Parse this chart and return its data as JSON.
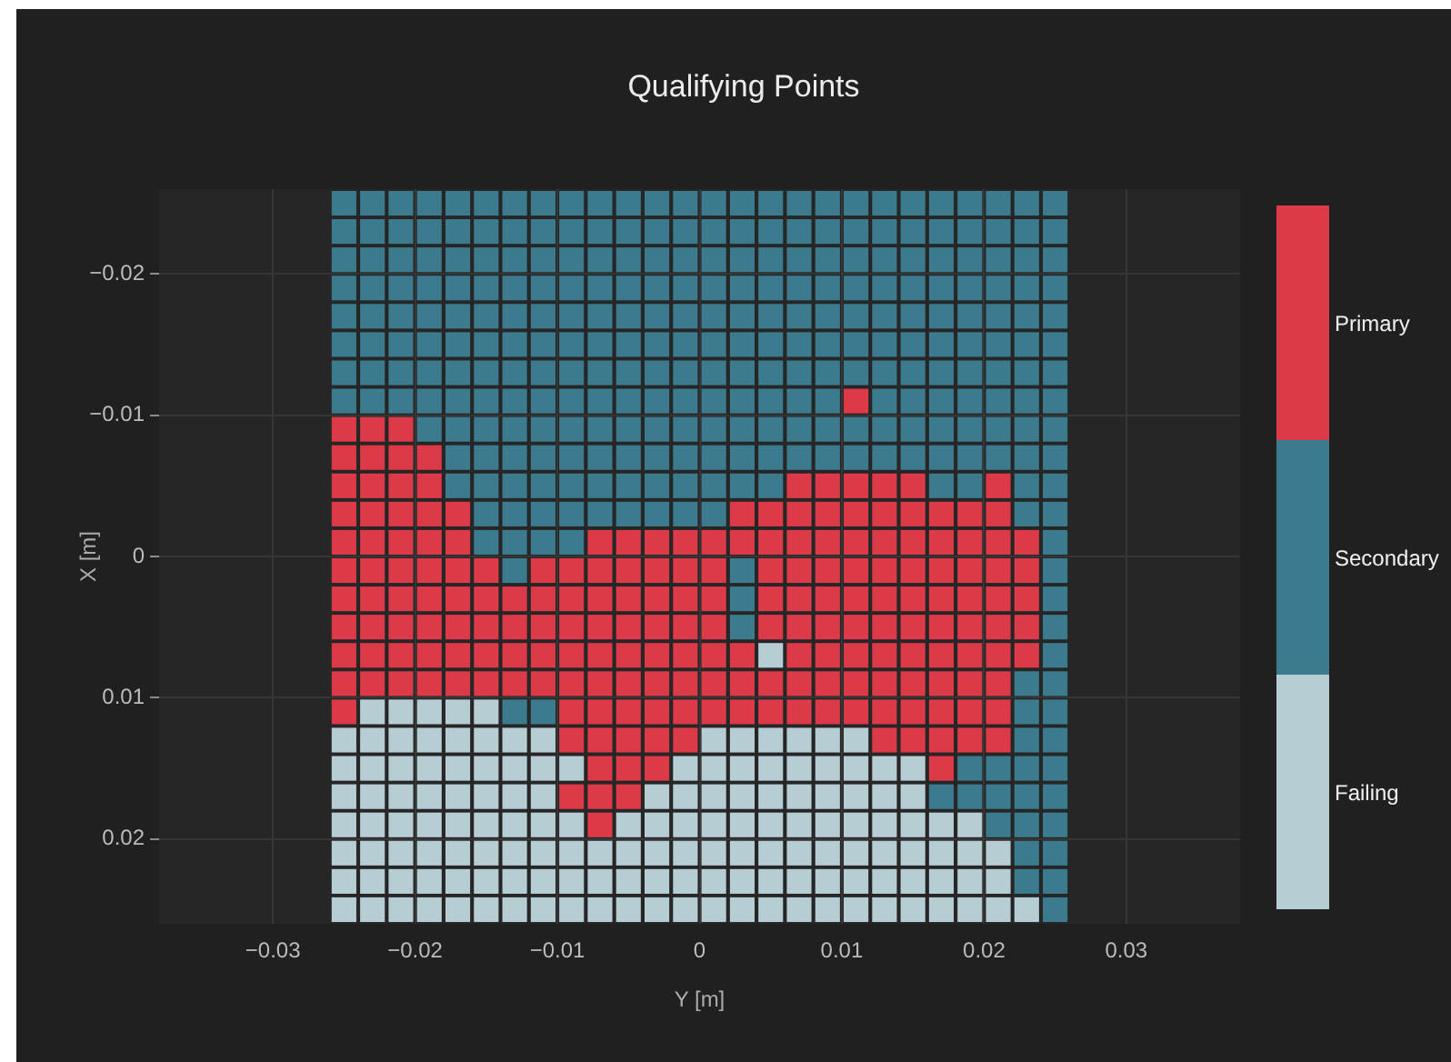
{
  "chart_data": {
    "type": "scatter",
    "title": "Qualifying Points",
    "xlabel": "Y [m]",
    "ylabel": "X [m]",
    "xlim": [
      -0.038,
      0.038
    ],
    "ylim": [
      0.026,
      -0.026
    ],
    "xticks": [
      {
        "value": -0.03,
        "label": "−0.03"
      },
      {
        "value": -0.02,
        "label": "−0.02"
      },
      {
        "value": -0.01,
        "label": "−0.01"
      },
      0,
      0.01,
      0.02,
      0.03
    ],
    "yticks": [
      {
        "value": -0.02,
        "label": "−0.02"
      },
      {
        "value": -0.01,
        "label": "−0.01"
      },
      0,
      0.01,
      0.02
    ],
    "grid": true,
    "legend": "right",
    "marker": "square",
    "series": [
      {
        "name": "Primary",
        "color": "#dc3a48",
        "x": [
          0.011,
          -0.025,
          -0.023,
          -0.021,
          -0.025,
          -0.023,
          -0.021,
          -0.019,
          -0.025,
          -0.023,
          -0.021,
          -0.019,
          0.007,
          0.009,
          0.011,
          0.013,
          0.015,
          0.021,
          -0.025,
          -0.023,
          -0.021,
          -0.019,
          -0.017,
          0.003,
          0.005,
          0.007,
          0.009,
          0.011,
          0.013,
          0.015,
          0.017,
          0.019,
          0.021,
          -0.025,
          -0.023,
          -0.021,
          -0.019,
          -0.017,
          -0.007,
          -0.005,
          -0.003,
          -0.001,
          0.001,
          0.003,
          0.005,
          0.007,
          0.009,
          0.011,
          0.013,
          0.015,
          0.017,
          0.019,
          0.021,
          0.023,
          -0.025,
          -0.023,
          -0.021,
          -0.019,
          -0.017,
          -0.015,
          -0.011,
          -0.009,
          -0.007,
          -0.005,
          -0.003,
          -0.001,
          0.001,
          0.005,
          0.007,
          0.009,
          0.011,
          0.013,
          0.015,
          0.017,
          0.019,
          0.021,
          0.023,
          -0.025,
          -0.023,
          -0.021,
          -0.019,
          -0.017,
          -0.015,
          -0.013,
          -0.011,
          -0.009,
          -0.007,
          -0.005,
          -0.003,
          -0.001,
          0.001,
          0.005,
          0.007,
          0.009,
          0.011,
          0.013,
          0.015,
          0.017,
          0.019,
          0.021,
          0.023,
          -0.025,
          -0.023,
          -0.021,
          -0.019,
          -0.017,
          -0.015,
          -0.013,
          -0.011,
          -0.009,
          -0.007,
          -0.005,
          -0.003,
          -0.001,
          0.001,
          0.005,
          0.007,
          0.009,
          0.011,
          0.013,
          0.015,
          0.017,
          0.019,
          0.021,
          0.023,
          -0.025,
          -0.023,
          -0.021,
          -0.019,
          -0.017,
          -0.015,
          -0.013,
          -0.011,
          -0.009,
          -0.007,
          -0.005,
          -0.003,
          -0.001,
          0.001,
          0.003,
          0.007,
          0.009,
          0.011,
          0.013,
          0.015,
          0.017,
          0.019,
          0.021,
          0.023,
          -0.025,
          -0.023,
          -0.021,
          -0.019,
          -0.017,
          -0.015,
          -0.013,
          -0.011,
          -0.009,
          -0.007,
          -0.005,
          -0.003,
          -0.001,
          0.001,
          0.003,
          0.005,
          0.007,
          0.009,
          0.011,
          0.013,
          0.015,
          0.017,
          0.019,
          0.021,
          -0.025,
          -0.009,
          -0.007,
          -0.005,
          -0.003,
          -0.001,
          0.001,
          0.003,
          0.005,
          0.007,
          0.009,
          0.011,
          0.013,
          0.015,
          0.017,
          0.019,
          0.021,
          -0.009,
          -0.007,
          -0.005,
          -0.003,
          -0.001,
          0.013,
          0.015,
          0.017,
          0.019,
          0.021,
          -0.007,
          -0.005,
          -0.003,
          0.017,
          -0.009,
          -0.007,
          -0.005,
          -0.007
        ],
        "values": [
          -0.011,
          -0.009,
          -0.009,
          -0.009,
          -0.007,
          -0.007,
          -0.007,
          -0.007,
          -0.005,
          -0.005,
          -0.005,
          -0.005,
          -0.005,
          -0.005,
          -0.005,
          -0.005,
          -0.005,
          -0.005,
          -0.003,
          -0.003,
          -0.003,
          -0.003,
          -0.003,
          -0.003,
          -0.003,
          -0.003,
          -0.003,
          -0.003,
          -0.003,
          -0.003,
          -0.003,
          -0.003,
          -0.003,
          -0.001,
          -0.001,
          -0.001,
          -0.001,
          -0.001,
          -0.001,
          -0.001,
          -0.001,
          -0.001,
          -0.001,
          -0.001,
          -0.001,
          -0.001,
          -0.001,
          -0.001,
          -0.001,
          -0.001,
          -0.001,
          -0.001,
          -0.001,
          -0.001,
          0.001,
          0.001,
          0.001,
          0.001,
          0.001,
          0.001,
          0.001,
          0.001,
          0.001,
          0.001,
          0.001,
          0.001,
          0.001,
          0.001,
          0.001,
          0.001,
          0.001,
          0.001,
          0.001,
          0.001,
          0.001,
          0.001,
          0.001,
          0.003,
          0.003,
          0.003,
          0.003,
          0.003,
          0.003,
          0.003,
          0.003,
          0.003,
          0.003,
          0.003,
          0.003,
          0.003,
          0.003,
          0.003,
          0.003,
          0.003,
          0.003,
          0.003,
          0.003,
          0.003,
          0.003,
          0.003,
          0.003,
          0.005,
          0.005,
          0.005,
          0.005,
          0.005,
          0.005,
          0.005,
          0.005,
          0.005,
          0.005,
          0.005,
          0.005,
          0.005,
          0.005,
          0.005,
          0.005,
          0.005,
          0.005,
          0.005,
          0.005,
          0.005,
          0.005,
          0.005,
          0.005,
          0.007,
          0.007,
          0.007,
          0.007,
          0.007,
          0.007,
          0.007,
          0.007,
          0.007,
          0.007,
          0.007,
          0.007,
          0.007,
          0.007,
          0.007,
          0.007,
          0.007,
          0.007,
          0.007,
          0.007,
          0.007,
          0.007,
          0.007,
          0.007,
          0.009,
          0.009,
          0.009,
          0.009,
          0.009,
          0.009,
          0.009,
          0.009,
          0.009,
          0.009,
          0.009,
          0.009,
          0.009,
          0.009,
          0.009,
          0.009,
          0.009,
          0.009,
          0.009,
          0.009,
          0.009,
          0.009,
          0.009,
          0.009,
          0.011,
          0.011,
          0.011,
          0.011,
          0.011,
          0.011,
          0.011,
          0.011,
          0.011,
          0.011,
          0.011,
          0.011,
          0.011,
          0.011,
          0.011,
          0.011,
          0.011,
          0.013,
          0.013,
          0.013,
          0.013,
          0.013,
          0.013,
          0.013,
          0.013,
          0.013,
          0.013,
          0.015,
          0.015,
          0.015,
          0.015,
          0.017,
          0.017,
          0.017,
          0.019
        ]
      },
      {
        "name": "Secondary",
        "color": "#3b7b8d",
        "x": [
          -0.025,
          -0.023,
          -0.021,
          -0.019,
          -0.017,
          -0.015,
          -0.013,
          -0.011,
          -0.009,
          -0.007,
          -0.005,
          -0.003,
          -0.001,
          0.001,
          0.003,
          0.005,
          0.007,
          0.009,
          0.011,
          0.013,
          0.015,
          0.017,
          0.019,
          0.021,
          0.023,
          0.025,
          -0.025,
          -0.023,
          -0.021,
          -0.019,
          -0.017,
          -0.015,
          -0.013,
          -0.011,
          -0.009,
          -0.007,
          -0.005,
          -0.003,
          -0.001,
          0.001,
          0.003,
          0.005,
          0.007,
          0.009,
          0.011,
          0.013,
          0.015,
          0.017,
          0.019,
          0.021,
          0.023,
          0.025,
          -0.025,
          -0.023,
          -0.021,
          -0.019,
          -0.017,
          -0.015,
          -0.013,
          -0.011,
          -0.009,
          -0.007,
          -0.005,
          -0.003,
          -0.001,
          0.001,
          0.003,
          0.005,
          0.007,
          0.009,
          0.011,
          0.013,
          0.015,
          0.017,
          0.019,
          0.021,
          0.023,
          0.025,
          -0.025,
          -0.023,
          -0.021,
          -0.019,
          -0.017,
          -0.015,
          -0.013,
          -0.011,
          -0.009,
          -0.007,
          -0.005,
          -0.003,
          -0.001,
          0.001,
          0.003,
          0.005,
          0.007,
          0.009,
          0.011,
          0.013,
          0.015,
          0.017,
          0.019,
          0.021,
          0.023,
          0.025,
          -0.025,
          -0.023,
          -0.021,
          -0.019,
          -0.017,
          -0.015,
          -0.013,
          -0.011,
          -0.009,
          -0.007,
          -0.005,
          -0.003,
          -0.001,
          0.001,
          0.003,
          0.005,
          0.007,
          0.009,
          0.011,
          0.013,
          0.015,
          0.017,
          0.019,
          0.021,
          0.023,
          0.025,
          -0.025,
          -0.023,
          -0.021,
          -0.019,
          -0.017,
          -0.015,
          -0.013,
          -0.011,
          -0.009,
          -0.007,
          -0.005,
          -0.003,
          -0.001,
          0.001,
          0.003,
          0.005,
          0.007,
          0.009,
          0.011,
          0.013,
          0.015,
          0.017,
          0.019,
          0.021,
          0.023,
          0.025,
          -0.025,
          -0.023,
          -0.021,
          -0.019,
          -0.017,
          -0.015,
          -0.013,
          -0.011,
          -0.009,
          -0.007,
          -0.005,
          -0.003,
          -0.001,
          0.001,
          0.003,
          0.005,
          0.007,
          0.009,
          0.011,
          0.013,
          0.015,
          0.017,
          0.019,
          0.021,
          0.023,
          0.025,
          -0.025,
          -0.023,
          -0.021,
          -0.019,
          -0.017,
          -0.015,
          -0.013,
          -0.011,
          -0.009,
          -0.007,
          -0.005,
          -0.003,
          -0.001,
          0.001,
          0.003,
          0.005,
          0.007,
          0.009,
          0.013,
          0.015,
          0.017,
          0.019,
          0.021,
          0.023,
          0.025,
          -0.019,
          -0.017,
          -0.015,
          -0.013,
          -0.011,
          -0.009,
          -0.007,
          -0.005,
          -0.003,
          -0.001,
          0.001,
          0.003,
          0.005,
          0.007,
          0.009,
          0.011,
          0.013,
          0.015,
          0.017,
          0.019,
          0.021,
          0.023,
          0.025,
          -0.017,
          -0.015,
          -0.013,
          -0.011,
          -0.009,
          -0.007,
          -0.005,
          -0.003,
          -0.001,
          0.001,
          0.003,
          0.005,
          0.007,
          0.009,
          0.011,
          0.013,
          0.015,
          0.017,
          0.019,
          0.021,
          0.023,
          0.025,
          -0.017,
          -0.015,
          -0.013,
          -0.011,
          -0.009,
          -0.007,
          -0.005,
          -0.003,
          -0.001,
          0.001,
          0.003,
          0.005,
          0.017,
          0.019,
          0.023,
          0.025,
          -0.015,
          -0.013,
          -0.011,
          -0.009,
          -0.007,
          -0.005,
          -0.003,
          -0.001,
          0.001,
          0.023,
          0.025,
          -0.015,
          -0.013,
          -0.011,
          -0.009,
          0.025,
          -0.013,
          0.003,
          0.025,
          0.003,
          0.025,
          0.003,
          0.025,
          0.025,
          0.023,
          0.025,
          -0.013,
          -0.011,
          0.023,
          0.025,
          0.023,
          0.025,
          0.019,
          0.021,
          0.023,
          0.025,
          0.017,
          0.019,
          0.021,
          0.023,
          0.025,
          0.021,
          0.023,
          0.025,
          0.023,
          0.025,
          0.023,
          0.025,
          0.025
        ],
        "values": [
          -0.025,
          -0.025,
          -0.025,
          -0.025,
          -0.025,
          -0.025,
          -0.025,
          -0.025,
          -0.025,
          -0.025,
          -0.025,
          -0.025,
          -0.025,
          -0.025,
          -0.025,
          -0.025,
          -0.025,
          -0.025,
          -0.025,
          -0.025,
          -0.025,
          -0.025,
          -0.025,
          -0.025,
          -0.025,
          -0.025,
          -0.023,
          -0.023,
          -0.023,
          -0.023,
          -0.023,
          -0.023,
          -0.023,
          -0.023,
          -0.023,
          -0.023,
          -0.023,
          -0.023,
          -0.023,
          -0.023,
          -0.023,
          -0.023,
          -0.023,
          -0.023,
          -0.023,
          -0.023,
          -0.023,
          -0.023,
          -0.023,
          -0.023,
          -0.023,
          -0.023,
          -0.021,
          -0.021,
          -0.021,
          -0.021,
          -0.021,
          -0.021,
          -0.021,
          -0.021,
          -0.021,
          -0.021,
          -0.021,
          -0.021,
          -0.021,
          -0.021,
          -0.021,
          -0.021,
          -0.021,
          -0.021,
          -0.021,
          -0.021,
          -0.021,
          -0.021,
          -0.021,
          -0.021,
          -0.021,
          -0.021,
          -0.019,
          -0.019,
          -0.019,
          -0.019,
          -0.019,
          -0.019,
          -0.019,
          -0.019,
          -0.019,
          -0.019,
          -0.019,
          -0.019,
          -0.019,
          -0.019,
          -0.019,
          -0.019,
          -0.019,
          -0.019,
          -0.019,
          -0.019,
          -0.019,
          -0.019,
          -0.019,
          -0.019,
          -0.019,
          -0.019,
          -0.017,
          -0.017,
          -0.017,
          -0.017,
          -0.017,
          -0.017,
          -0.017,
          -0.017,
          -0.017,
          -0.017,
          -0.017,
          -0.017,
          -0.017,
          -0.017,
          -0.017,
          -0.017,
          -0.017,
          -0.017,
          -0.017,
          -0.017,
          -0.017,
          -0.017,
          -0.017,
          -0.017,
          -0.017,
          -0.017,
          -0.015,
          -0.015,
          -0.015,
          -0.015,
          -0.015,
          -0.015,
          -0.015,
          -0.015,
          -0.015,
          -0.015,
          -0.015,
          -0.015,
          -0.015,
          -0.015,
          -0.015,
          -0.015,
          -0.015,
          -0.015,
          -0.015,
          -0.015,
          -0.015,
          -0.015,
          -0.015,
          -0.015,
          -0.015,
          -0.015,
          -0.013,
          -0.013,
          -0.013,
          -0.013,
          -0.013,
          -0.013,
          -0.013,
          -0.013,
          -0.013,
          -0.013,
          -0.013,
          -0.013,
          -0.013,
          -0.013,
          -0.013,
          -0.013,
          -0.013,
          -0.013,
          -0.013,
          -0.013,
          -0.013,
          -0.013,
          -0.013,
          -0.013,
          -0.013,
          -0.013,
          -0.011,
          -0.011,
          -0.011,
          -0.011,
          -0.011,
          -0.011,
          -0.011,
          -0.011,
          -0.011,
          -0.011,
          -0.011,
          -0.011,
          -0.011,
          -0.011,
          -0.011,
          -0.011,
          -0.011,
          -0.011,
          -0.011,
          -0.011,
          -0.011,
          -0.011,
          -0.011,
          -0.011,
          -0.011,
          -0.009,
          -0.009,
          -0.009,
          -0.009,
          -0.009,
          -0.009,
          -0.009,
          -0.009,
          -0.009,
          -0.009,
          -0.009,
          -0.009,
          -0.009,
          -0.009,
          -0.009,
          -0.009,
          -0.009,
          -0.009,
          -0.009,
          -0.009,
          -0.009,
          -0.009,
          -0.009,
          -0.007,
          -0.007,
          -0.007,
          -0.007,
          -0.007,
          -0.007,
          -0.007,
          -0.007,
          -0.007,
          -0.007,
          -0.007,
          -0.007,
          -0.007,
          -0.007,
          -0.007,
          -0.007,
          -0.007,
          -0.007,
          -0.007,
          -0.007,
          -0.007,
          -0.007,
          -0.005,
          -0.005,
          -0.005,
          -0.005,
          -0.005,
          -0.005,
          -0.005,
          -0.005,
          -0.005,
          -0.005,
          -0.005,
          -0.005,
          -0.005,
          -0.005,
          -0.005,
          -0.005,
          -0.003,
          -0.003,
          -0.003,
          -0.003,
          -0.003,
          -0.003,
          -0.003,
          -0.003,
          -0.003,
          -0.003,
          -0.003,
          -0.001,
          -0.001,
          -0.001,
          -0.001,
          -0.001,
          0.001,
          0.001,
          0.001,
          0.003,
          0.003,
          0.005,
          0.005,
          0.007,
          0.009,
          0.009,
          0.011,
          0.011,
          0.011,
          0.011,
          0.013,
          0.013,
          0.015,
          0.015,
          0.015,
          0.015,
          0.017,
          0.017,
          0.017,
          0.017,
          0.017,
          0.019,
          0.019,
          0.019,
          0.021,
          0.021,
          0.023,
          0.023,
          0.025
        ]
      },
      {
        "name": "Failing",
        "color": "#b6cdd4",
        "x": [
          0.005,
          -0.023,
          -0.021,
          -0.019,
          -0.017,
          -0.015,
          -0.025,
          -0.023,
          -0.021,
          -0.019,
          -0.017,
          -0.015,
          -0.013,
          -0.011,
          0.001,
          0.003,
          0.005,
          0.007,
          0.009,
          0.011,
          -0.025,
          -0.023,
          -0.021,
          -0.019,
          -0.017,
          -0.015,
          -0.013,
          -0.011,
          -0.009,
          -0.001,
          0.001,
          0.003,
          0.005,
          0.007,
          0.009,
          0.011,
          0.013,
          0.015,
          -0.025,
          -0.023,
          -0.021,
          -0.019,
          -0.017,
          -0.015,
          -0.013,
          -0.011,
          -0.003,
          -0.001,
          0.001,
          0.003,
          0.005,
          0.007,
          0.009,
          0.011,
          0.013,
          0.015,
          -0.025,
          -0.023,
          -0.021,
          -0.019,
          -0.017,
          -0.015,
          -0.013,
          -0.011,
          -0.009,
          -0.005,
          -0.003,
          -0.001,
          0.001,
          0.003,
          0.005,
          0.007,
          0.009,
          0.011,
          0.013,
          0.015,
          0.017,
          0.019,
          -0.025,
          -0.023,
          -0.021,
          -0.019,
          -0.017,
          -0.015,
          -0.013,
          -0.011,
          -0.009,
          -0.007,
          -0.005,
          -0.003,
          -0.001,
          0.001,
          0.003,
          0.005,
          0.007,
          0.009,
          0.011,
          0.013,
          0.015,
          0.017,
          0.019,
          0.021,
          -0.025,
          -0.023,
          -0.021,
          -0.019,
          -0.017,
          -0.015,
          -0.013,
          -0.011,
          -0.009,
          -0.007,
          -0.005,
          -0.003,
          -0.001,
          0.001,
          0.003,
          0.005,
          0.007,
          0.009,
          0.011,
          0.013,
          0.015,
          0.017,
          0.019,
          0.021,
          -0.025,
          -0.023,
          -0.021,
          -0.019,
          -0.017,
          -0.015,
          -0.013,
          -0.011,
          -0.009,
          -0.007,
          -0.005,
          -0.003,
          -0.001,
          0.001,
          0.003,
          0.005,
          0.007,
          0.009,
          0.011,
          0.013,
          0.015,
          0.017,
          0.019,
          0.021,
          0.023
        ],
        "values": [
          0.007,
          0.011,
          0.011,
          0.011,
          0.011,
          0.011,
          0.013,
          0.013,
          0.013,
          0.013,
          0.013,
          0.013,
          0.013,
          0.013,
          0.013,
          0.013,
          0.013,
          0.013,
          0.013,
          0.013,
          0.015,
          0.015,
          0.015,
          0.015,
          0.015,
          0.015,
          0.015,
          0.015,
          0.015,
          0.015,
          0.015,
          0.015,
          0.015,
          0.015,
          0.015,
          0.015,
          0.015,
          0.015,
          0.017,
          0.017,
          0.017,
          0.017,
          0.017,
          0.017,
          0.017,
          0.017,
          0.017,
          0.017,
          0.017,
          0.017,
          0.017,
          0.017,
          0.017,
          0.017,
          0.017,
          0.017,
          0.019,
          0.019,
          0.019,
          0.019,
          0.019,
          0.019,
          0.019,
          0.019,
          0.019,
          0.019,
          0.019,
          0.019,
          0.019,
          0.019,
          0.019,
          0.019,
          0.019,
          0.019,
          0.019,
          0.019,
          0.019,
          0.019,
          0.021,
          0.021,
          0.021,
          0.021,
          0.021,
          0.021,
          0.021,
          0.021,
          0.021,
          0.021,
          0.021,
          0.021,
          0.021,
          0.021,
          0.021,
          0.021,
          0.021,
          0.021,
          0.021,
          0.021,
          0.021,
          0.021,
          0.021,
          0.021,
          0.023,
          0.023,
          0.023,
          0.023,
          0.023,
          0.023,
          0.023,
          0.023,
          0.023,
          0.023,
          0.023,
          0.023,
          0.023,
          0.023,
          0.023,
          0.023,
          0.023,
          0.023,
          0.023,
          0.023,
          0.023,
          0.023,
          0.023,
          0.023,
          0.025,
          0.025,
          0.025,
          0.025,
          0.025,
          0.025,
          0.025,
          0.025,
          0.025,
          0.025,
          0.025,
          0.025,
          0.025,
          0.025,
          0.025,
          0.025,
          0.025,
          0.025,
          0.025,
          0.025,
          0.025,
          0.025,
          0.025,
          0.025,
          0.025
        ]
      }
    ]
  }
}
